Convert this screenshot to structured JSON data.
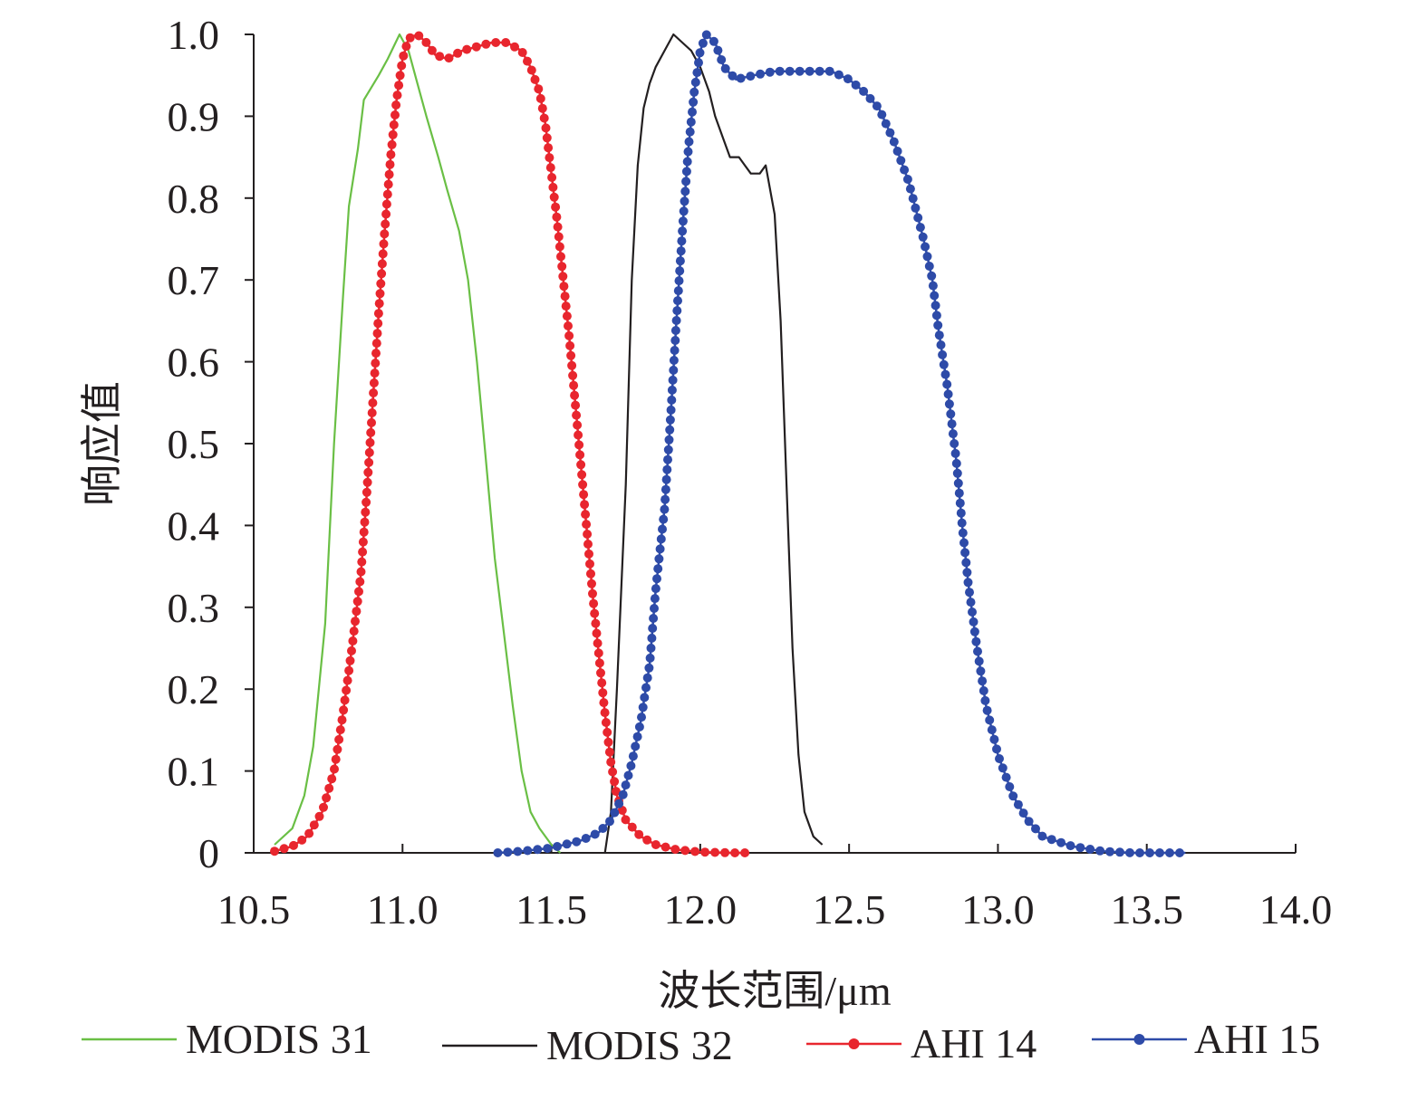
{
  "chart_data": {
    "type": "line",
    "title": "",
    "xlabel": "波长范围/μm",
    "ylabel": "响应值",
    "xlim": [
      10.5,
      14.0
    ],
    "ylim": [
      0,
      1.0
    ],
    "x_ticks": [
      "10.5",
      "11.0",
      "11.5",
      "12.0",
      "12.5",
      "13.0",
      "13.5",
      "14.0"
    ],
    "y_ticks": [
      "0",
      "0.1",
      "0.2",
      "0.3",
      "0.4",
      "0.5",
      "0.6",
      "0.7",
      "0.8",
      "0.9",
      "1.0"
    ],
    "grid": false,
    "legend_position": "bottom",
    "series": [
      {
        "name": "MODIS 31",
        "color": "#6abf45",
        "markers": false,
        "points": [
          [
            10.57,
            0.01
          ],
          [
            10.63,
            0.03
          ],
          [
            10.67,
            0.07
          ],
          [
            10.7,
            0.13
          ],
          [
            10.74,
            0.28
          ],
          [
            10.77,
            0.5
          ],
          [
            10.8,
            0.68
          ],
          [
            10.82,
            0.79
          ],
          [
            10.85,
            0.86
          ],
          [
            10.87,
            0.92
          ],
          [
            10.92,
            0.95
          ],
          [
            10.95,
            0.97
          ],
          [
            10.99,
            1.0
          ],
          [
            11.02,
            0.98
          ],
          [
            11.05,
            0.94
          ],
          [
            11.08,
            0.9
          ],
          [
            11.12,
            0.85
          ],
          [
            11.15,
            0.81
          ],
          [
            11.19,
            0.76
          ],
          [
            11.22,
            0.7
          ],
          [
            11.25,
            0.6
          ],
          [
            11.28,
            0.48
          ],
          [
            11.31,
            0.36
          ],
          [
            11.34,
            0.27
          ],
          [
            11.37,
            0.18
          ],
          [
            11.4,
            0.1
          ],
          [
            11.43,
            0.05
          ],
          [
            11.46,
            0.03
          ],
          [
            11.5,
            0.01
          ],
          [
            11.53,
            0.0
          ]
        ]
      },
      {
        "name": "MODIS 32",
        "color": "#231f20",
        "markers": false,
        "points": [
          [
            11.68,
            0.0
          ],
          [
            11.7,
            0.05
          ],
          [
            11.72,
            0.2
          ],
          [
            11.75,
            0.45
          ],
          [
            11.77,
            0.7
          ],
          [
            11.79,
            0.84
          ],
          [
            11.81,
            0.91
          ],
          [
            11.83,
            0.94
          ],
          [
            11.85,
            0.96
          ],
          [
            11.88,
            0.98
          ],
          [
            11.91,
            1.0
          ],
          [
            11.94,
            0.99
          ],
          [
            11.97,
            0.98
          ],
          [
            12.0,
            0.96
          ],
          [
            12.03,
            0.93
          ],
          [
            12.05,
            0.9
          ],
          [
            12.08,
            0.87
          ],
          [
            12.1,
            0.85
          ],
          [
            12.13,
            0.85
          ],
          [
            12.15,
            0.84
          ],
          [
            12.17,
            0.83
          ],
          [
            12.2,
            0.83
          ],
          [
            12.22,
            0.84
          ],
          [
            12.25,
            0.78
          ],
          [
            12.27,
            0.65
          ],
          [
            12.29,
            0.45
          ],
          [
            12.31,
            0.25
          ],
          [
            12.33,
            0.12
          ],
          [
            12.35,
            0.05
          ],
          [
            12.38,
            0.02
          ],
          [
            12.41,
            0.01
          ]
        ]
      },
      {
        "name": "AHI 14",
        "color": "#e8262e",
        "markers": true,
        "points": [
          [
            10.57,
            0.002
          ],
          [
            10.63,
            0.008
          ],
          [
            10.68,
            0.02
          ],
          [
            10.73,
            0.05
          ],
          [
            10.77,
            0.1
          ],
          [
            10.8,
            0.17
          ],
          [
            10.83,
            0.25
          ],
          [
            10.86,
            0.34
          ],
          [
            10.88,
            0.44
          ],
          [
            10.9,
            0.55
          ],
          [
            10.92,
            0.66
          ],
          [
            10.94,
            0.76
          ],
          [
            10.96,
            0.85
          ],
          [
            10.98,
            0.92
          ],
          [
            11.0,
            0.97
          ],
          [
            11.02,
            0.995
          ],
          [
            11.05,
            1.0
          ],
          [
            11.08,
            0.99
          ],
          [
            11.11,
            0.975
          ],
          [
            11.15,
            0.97
          ],
          [
            11.2,
            0.98
          ],
          [
            11.25,
            0.985
          ],
          [
            11.3,
            0.99
          ],
          [
            11.35,
            0.99
          ],
          [
            11.4,
            0.98
          ],
          [
            11.43,
            0.96
          ],
          [
            11.46,
            0.93
          ],
          [
            11.48,
            0.89
          ],
          [
            11.5,
            0.83
          ],
          [
            11.52,
            0.77
          ],
          [
            11.54,
            0.7
          ],
          [
            11.56,
            0.63
          ],
          [
            11.58,
            0.55
          ],
          [
            11.6,
            0.47
          ],
          [
            11.62,
            0.39
          ],
          [
            11.64,
            0.31
          ],
          [
            11.66,
            0.24
          ],
          [
            11.68,
            0.17
          ],
          [
            11.7,
            0.11
          ],
          [
            11.72,
            0.07
          ],
          [
            11.75,
            0.04
          ],
          [
            11.8,
            0.02
          ],
          [
            11.85,
            0.01
          ],
          [
            11.92,
            0.004
          ],
          [
            12.0,
            0.001
          ],
          [
            12.1,
            0.0
          ],
          [
            12.16,
            0.0
          ]
        ]
      },
      {
        "name": "AHI 15",
        "color": "#2e4ba8",
        "markers": true,
        "points": [
          [
            11.32,
            0.0
          ],
          [
            11.4,
            0.002
          ],
          [
            11.5,
            0.006
          ],
          [
            11.6,
            0.015
          ],
          [
            11.66,
            0.025
          ],
          [
            11.7,
            0.04
          ],
          [
            11.74,
            0.07
          ],
          [
            11.77,
            0.11
          ],
          [
            11.8,
            0.16
          ],
          [
            11.83,
            0.23
          ],
          [
            11.85,
            0.32
          ],
          [
            11.88,
            0.42
          ],
          [
            11.9,
            0.53
          ],
          [
            11.92,
            0.65
          ],
          [
            11.94,
            0.76
          ],
          [
            11.96,
            0.86
          ],
          [
            11.98,
            0.93
          ],
          [
            12.0,
            0.98
          ],
          [
            12.02,
            1.0
          ],
          [
            12.05,
            0.99
          ],
          [
            12.08,
            0.96
          ],
          [
            12.12,
            0.945
          ],
          [
            12.18,
            0.95
          ],
          [
            12.25,
            0.955
          ],
          [
            12.32,
            0.955
          ],
          [
            12.38,
            0.955
          ],
          [
            12.44,
            0.955
          ],
          [
            12.5,
            0.945
          ],
          [
            12.55,
            0.93
          ],
          [
            12.6,
            0.91
          ],
          [
            12.65,
            0.87
          ],
          [
            12.7,
            0.82
          ],
          [
            12.75,
            0.75
          ],
          [
            12.78,
            0.7
          ],
          [
            12.8,
            0.64
          ],
          [
            12.83,
            0.57
          ],
          [
            12.86,
            0.48
          ],
          [
            12.88,
            0.4
          ],
          [
            12.9,
            0.33
          ],
          [
            12.93,
            0.25
          ],
          [
            12.96,
            0.18
          ],
          [
            13.0,
            0.12
          ],
          [
            13.05,
            0.07
          ],
          [
            13.1,
            0.04
          ],
          [
            13.15,
            0.02
          ],
          [
            13.25,
            0.008
          ],
          [
            13.35,
            0.002
          ],
          [
            13.45,
            0.0
          ],
          [
            13.55,
            0.0
          ],
          [
            13.63,
            0.0
          ]
        ]
      }
    ]
  }
}
